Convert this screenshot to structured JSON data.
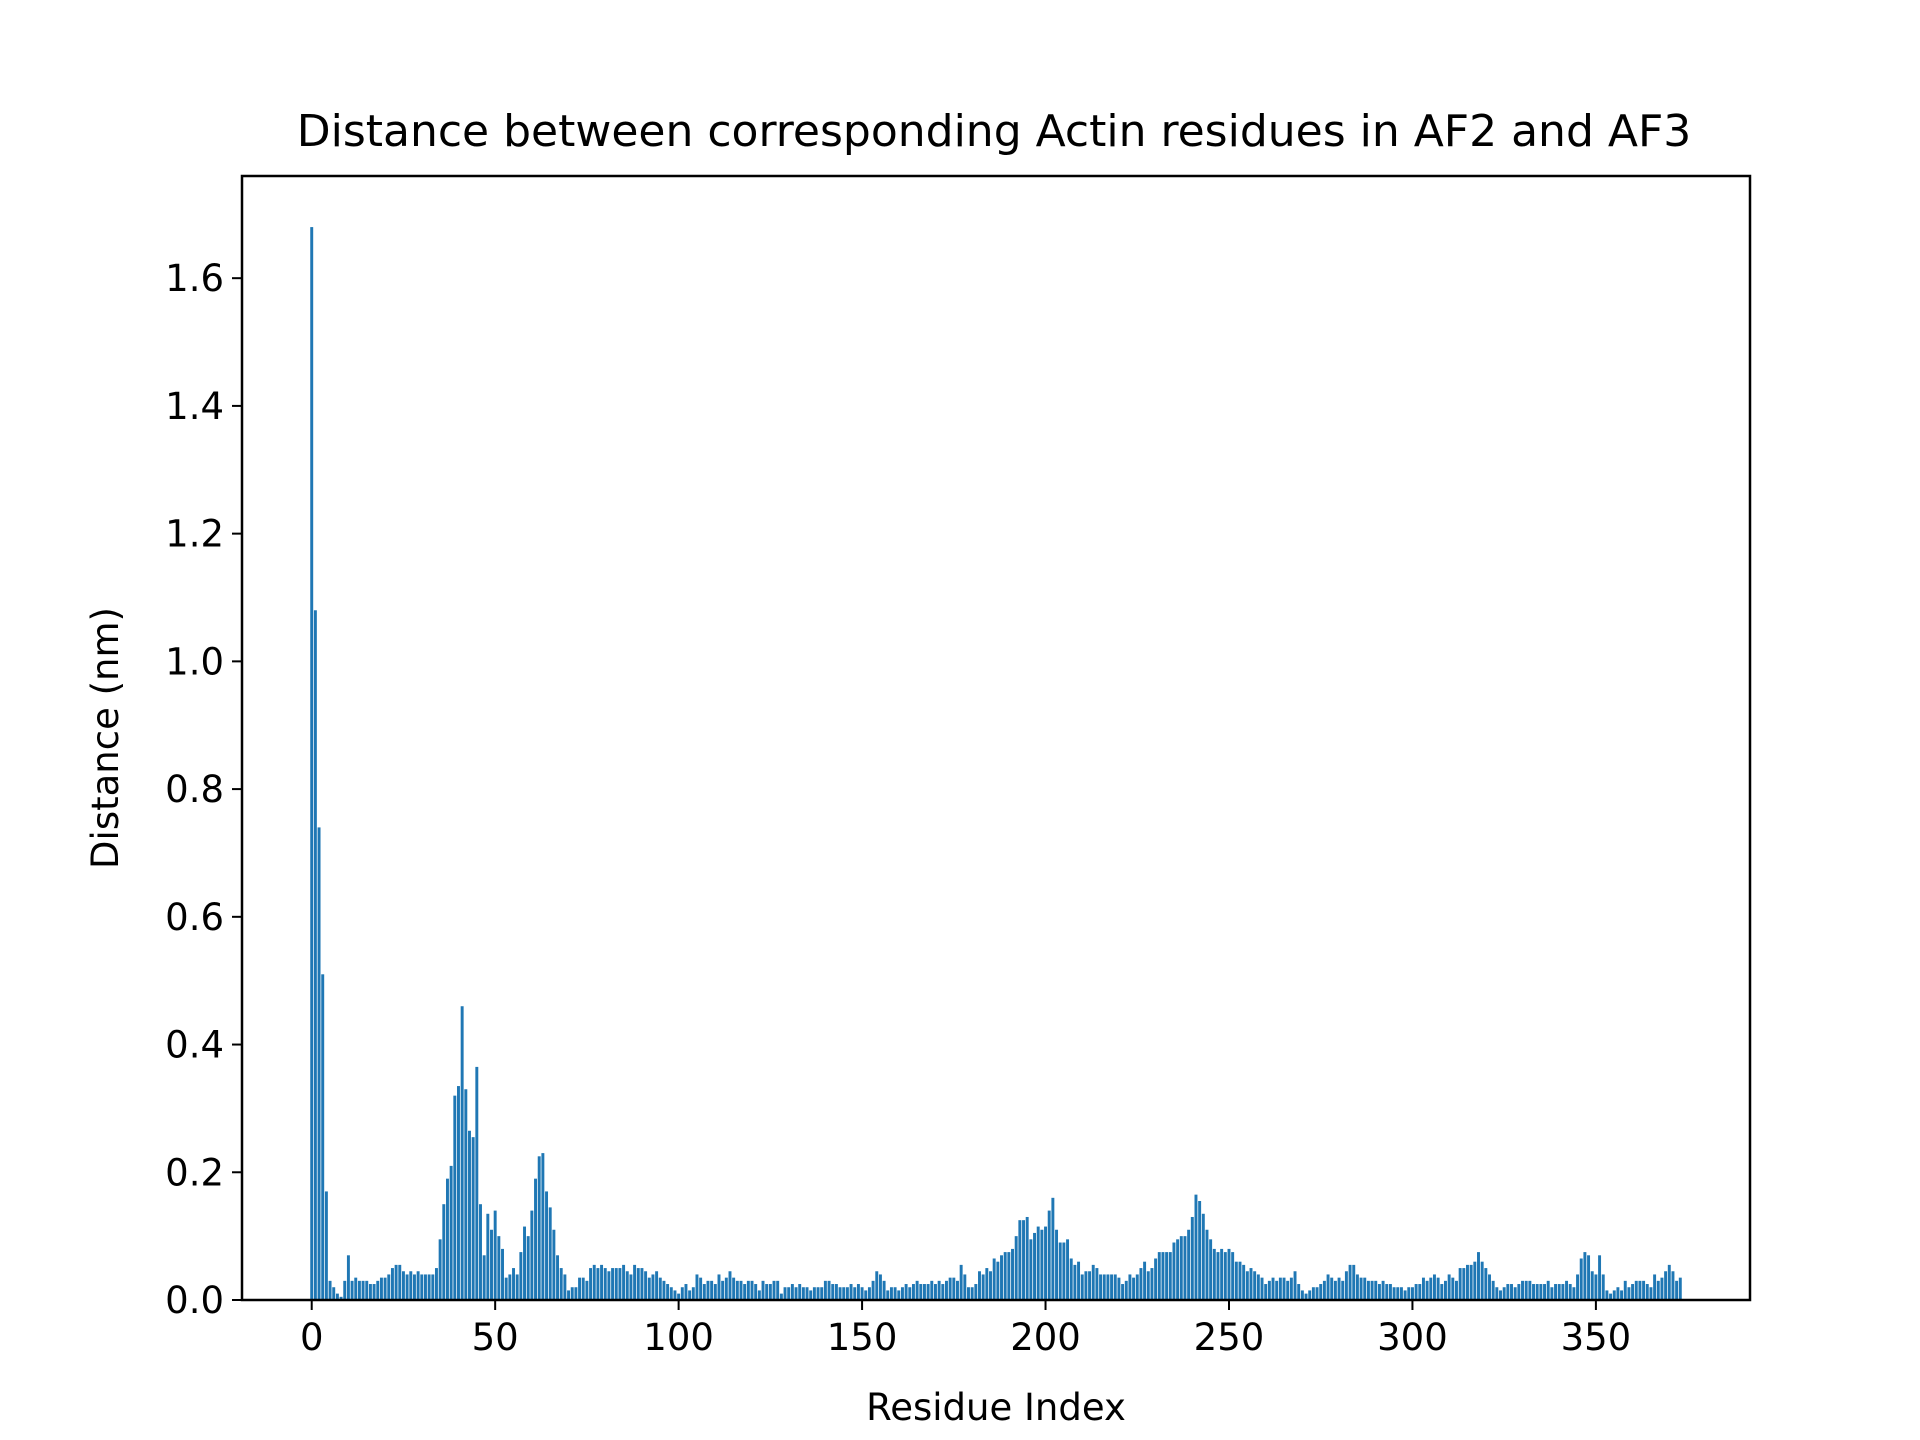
{
  "chart_data": {
    "type": "bar",
    "title": "Distance between corresponding Actin residues in AF2 and AF3",
    "xlabel": "Residue Index",
    "ylabel": "Distance (nm)",
    "xlim": [
      -19,
      392
    ],
    "ylim": [
      0,
      1.76
    ],
    "xticks": [
      0,
      50,
      100,
      150,
      200,
      250,
      300,
      350
    ],
    "yticks": [
      0.0,
      0.2,
      0.4,
      0.6,
      0.8,
      1.0,
      1.2,
      1.4,
      1.6
    ],
    "xtick_labels": [
      "0",
      "50",
      "100",
      "150",
      "200",
      "250",
      "300",
      "350"
    ],
    "ytick_labels": [
      "0.0",
      "0.2",
      "0.4",
      "0.6",
      "0.8",
      "1.0",
      "1.2",
      "1.4",
      "1.6"
    ],
    "bar_color": "#1f77b4",
    "grid": false,
    "legend": "none",
    "x_start": 0,
    "values": [
      1.68,
      1.08,
      0.74,
      0.51,
      0.17,
      0.03,
      0.02,
      0.01,
      0.005,
      0.03,
      0.07,
      0.03,
      0.035,
      0.03,
      0.03,
      0.03,
      0.025,
      0.025,
      0.03,
      0.035,
      0.035,
      0.04,
      0.05,
      0.055,
      0.055,
      0.045,
      0.04,
      0.045,
      0.04,
      0.045,
      0.04,
      0.04,
      0.04,
      0.04,
      0.05,
      0.095,
      0.15,
      0.19,
      0.21,
      0.32,
      0.335,
      0.46,
      0.33,
      0.265,
      0.255,
      0.365,
      0.15,
      0.07,
      0.135,
      0.11,
      0.14,
      0.1,
      0.08,
      0.035,
      0.04,
      0.05,
      0.04,
      0.075,
      0.115,
      0.1,
      0.14,
      0.19,
      0.225,
      0.23,
      0.17,
      0.145,
      0.11,
      0.07,
      0.05,
      0.04,
      0.015,
      0.02,
      0.02,
      0.035,
      0.035,
      0.03,
      0.05,
      0.055,
      0.05,
      0.055,
      0.05,
      0.045,
      0.05,
      0.05,
      0.05,
      0.055,
      0.045,
      0.04,
      0.055,
      0.05,
      0.05,
      0.045,
      0.035,
      0.04,
      0.045,
      0.035,
      0.03,
      0.025,
      0.02,
      0.015,
      0.01,
      0.02,
      0.025,
      0.015,
      0.02,
      0.04,
      0.035,
      0.025,
      0.03,
      0.03,
      0.025,
      0.04,
      0.03,
      0.035,
      0.045,
      0.035,
      0.03,
      0.03,
      0.025,
      0.03,
      0.03,
      0.025,
      0.015,
      0.03,
      0.025,
      0.025,
      0.03,
      0.03,
      0.01,
      0.02,
      0.02,
      0.025,
      0.02,
      0.025,
      0.02,
      0.02,
      0.015,
      0.02,
      0.02,
      0.02,
      0.03,
      0.03,
      0.025,
      0.025,
      0.02,
      0.02,
      0.02,
      0.025,
      0.02,
      0.025,
      0.02,
      0.015,
      0.02,
      0.03,
      0.045,
      0.04,
      0.03,
      0.015,
      0.02,
      0.02,
      0.015,
      0.02,
      0.025,
      0.02,
      0.025,
      0.03,
      0.025,
      0.025,
      0.025,
      0.03,
      0.025,
      0.03,
      0.025,
      0.03,
      0.035,
      0.035,
      0.03,
      0.055,
      0.04,
      0.02,
      0.02,
      0.025,
      0.045,
      0.04,
      0.05,
      0.045,
      0.065,
      0.06,
      0.07,
      0.075,
      0.075,
      0.08,
      0.1,
      0.125,
      0.125,
      0.13,
      0.095,
      0.105,
      0.115,
      0.11,
      0.115,
      0.14,
      0.16,
      0.11,
      0.09,
      0.09,
      0.095,
      0.065,
      0.055,
      0.06,
      0.04,
      0.045,
      0.045,
      0.055,
      0.05,
      0.04,
      0.04,
      0.04,
      0.04,
      0.04,
      0.035,
      0.025,
      0.03,
      0.04,
      0.035,
      0.04,
      0.05,
      0.06,
      0.045,
      0.05,
      0.065,
      0.075,
      0.075,
      0.075,
      0.075,
      0.09,
      0.095,
      0.1,
      0.1,
      0.11,
      0.13,
      0.165,
      0.155,
      0.135,
      0.11,
      0.095,
      0.08,
      0.075,
      0.08,
      0.075,
      0.08,
      0.075,
      0.06,
      0.06,
      0.055,
      0.045,
      0.05,
      0.045,
      0.04,
      0.035,
      0.025,
      0.03,
      0.035,
      0.03,
      0.035,
      0.035,
      0.03,
      0.035,
      0.045,
      0.025,
      0.015,
      0.01,
      0.015,
      0.02,
      0.02,
      0.025,
      0.03,
      0.04,
      0.035,
      0.03,
      0.035,
      0.03,
      0.045,
      0.055,
      0.055,
      0.04,
      0.035,
      0.035,
      0.03,
      0.03,
      0.03,
      0.025,
      0.03,
      0.025,
      0.025,
      0.02,
      0.02,
      0.02,
      0.015,
      0.02,
      0.02,
      0.025,
      0.025,
      0.035,
      0.03,
      0.035,
      0.04,
      0.035,
      0.025,
      0.03,
      0.04,
      0.035,
      0.03,
      0.05,
      0.05,
      0.055,
      0.055,
      0.06,
      0.075,
      0.06,
      0.05,
      0.04,
      0.03,
      0.02,
      0.015,
      0.02,
      0.025,
      0.025,
      0.02,
      0.025,
      0.03,
      0.03,
      0.03,
      0.025,
      0.025,
      0.025,
      0.025,
      0.03,
      0.02,
      0.025,
      0.025,
      0.025,
      0.03,
      0.025,
      0.02,
      0.04,
      0.065,
      0.075,
      0.07,
      0.045,
      0.04,
      0.07,
      0.04,
      0.015,
      0.01,
      0.015,
      0.02,
      0.015,
      0.03,
      0.02,
      0.025,
      0.03,
      0.03,
      0.03,
      0.025,
      0.02,
      0.04,
      0.03,
      0.035,
      0.045,
      0.055,
      0.045,
      0.03,
      0.035
    ]
  }
}
